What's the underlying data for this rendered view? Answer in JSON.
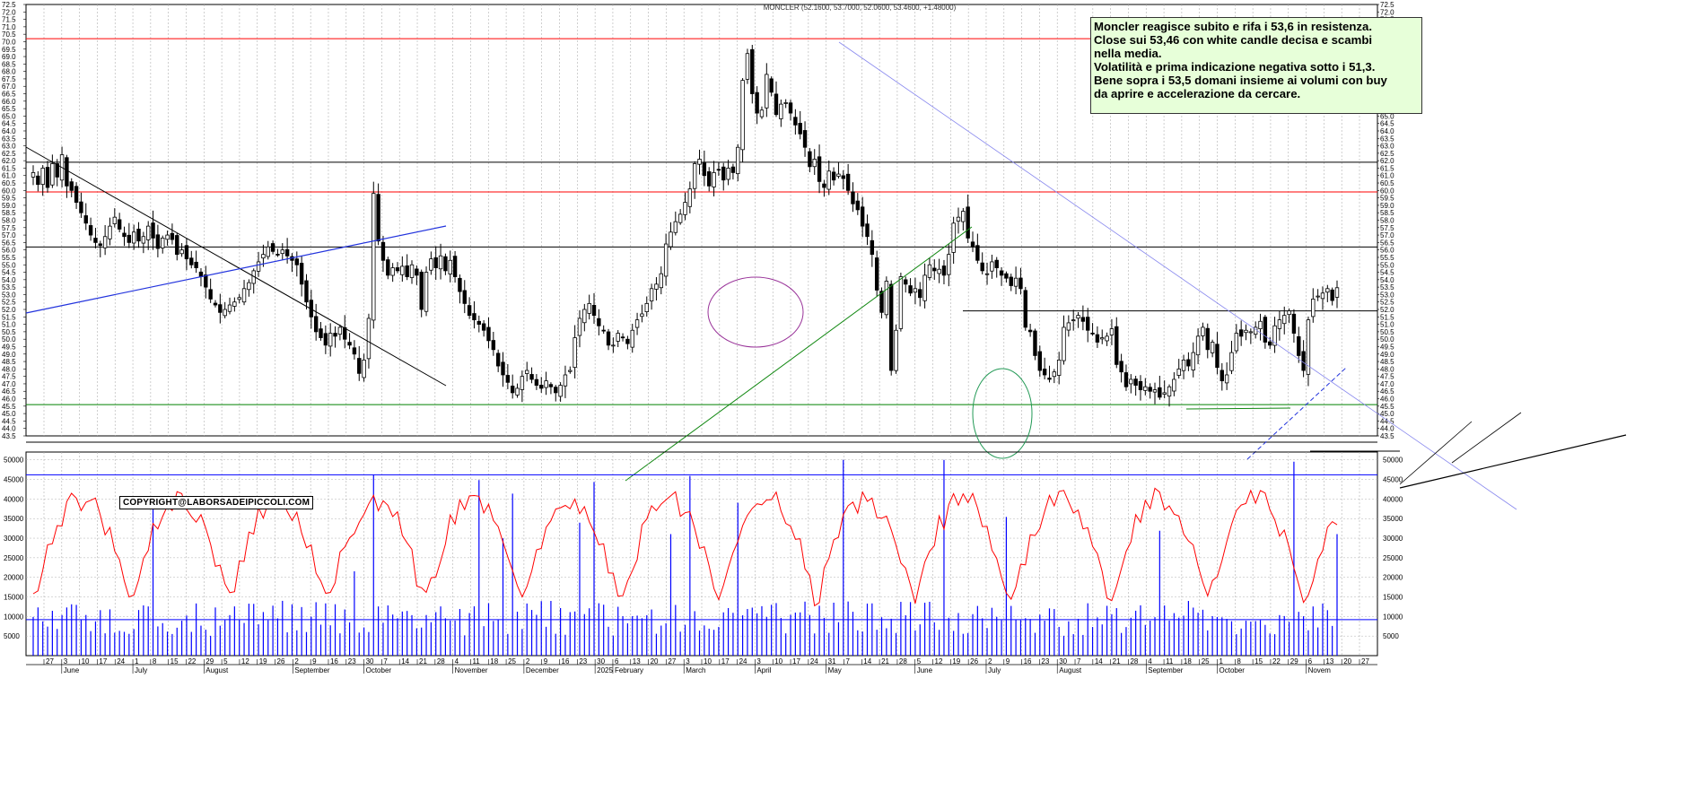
{
  "chart_data": [
    {
      "type": "candlestick",
      "title": "MONCLER (52.1600, 53.7000, 52.0600, 53.4600, +1.48000)",
      "ylim": [
        43.5,
        72.5
      ],
      "ytick_step": 0.5,
      "grid": true,
      "date_range": [
        "2024-05-27",
        "2025-10-24"
      ],
      "x_ticks": [
        "27",
        "3",
        "10",
        "17",
        "24",
        "1",
        "8",
        "15",
        "22",
        "29",
        "5",
        "12",
        "19",
        "26",
        "2",
        "9",
        "16",
        "23",
        "30",
        "7",
        "14",
        "21",
        "28",
        "4",
        "11",
        "18",
        "25",
        "2",
        "9",
        "16",
        "23",
        "30",
        "6",
        "13",
        "20",
        "27",
        "3",
        "10",
        "17",
        "24",
        "3",
        "10",
        "17",
        "24",
        "31",
        "7",
        "14",
        "21",
        "28",
        "5",
        "12",
        "19",
        "26",
        "2",
        "9",
        "16",
        "23",
        "30",
        "7",
        "14",
        "21",
        "28",
        "4",
        "11",
        "18",
        "25",
        "1",
        "8",
        "15",
        "22",
        "29",
        "6",
        "13",
        "20",
        "27"
      ],
      "months": [
        "June",
        "July",
        "August",
        "September",
        "October",
        "November",
        "December",
        "2025",
        "February",
        "March",
        "April",
        "May",
        "June",
        "July",
        "August",
        "September",
        "October",
        "Novem"
      ],
      "close": [
        61.2,
        60.4,
        61.5,
        60.2,
        61.8,
        60.9,
        62.4,
        60.3,
        60.0,
        59.2,
        58.5,
        57.8,
        57.0,
        56.5,
        56.3,
        56.9,
        57.6,
        58.2,
        57.4,
        56.9,
        56.5,
        57.2,
        56.6,
        56.9,
        57.6,
        56.8,
        56.1,
        56.8,
        57.0,
        56.7,
        55.7,
        56.0,
        55.4,
        55.0,
        54.8,
        54.2,
        53.5,
        52.7,
        52.3,
        51.8,
        52.0,
        52.3,
        52.5,
        52.8,
        53.4,
        53.8,
        54.6,
        55.2,
        55.7,
        56.2,
        55.9,
        55.7,
        56.0,
        55.6,
        55.3,
        55.0,
        53.7,
        52.5,
        51.5,
        50.5,
        50.1,
        49.6,
        50.4,
        50.2,
        50.8,
        50.0,
        49.6,
        49.0,
        47.7,
        48.6,
        51.4,
        59.8,
        56.6,
        55.3,
        54.3,
        54.8,
        54.6,
        54.9,
        54.2,
        55.0,
        54.3,
        52.0,
        54.5,
        55.4,
        54.8,
        55.6,
        54.6,
        55.3,
        54.2,
        53.2,
        52.4,
        51.6,
        51.3,
        51.0,
        50.6,
        49.9,
        49.3,
        48.2,
        47.6,
        47.1,
        46.4,
        46.7,
        47.5,
        47.9,
        47.3,
        46.9,
        46.7,
        47.2,
        46.8,
        46.4,
        46.9,
        47.6,
        47.9,
        50.1,
        51.4,
        52.0,
        52.4,
        51.6,
        50.9,
        50.6,
        49.6,
        49.6,
        50.4,
        50.1,
        49.7,
        50.6,
        51.3,
        51.7,
        52.4,
        53.4,
        53.7,
        54.4,
        56.4,
        57.2,
        57.9,
        58.4,
        59.2,
        60.1,
        61.8,
        62.1,
        61.0,
        60.3,
        61.2,
        61.4,
        60.7,
        61.5,
        61.2,
        62.9,
        67.4,
        69.2,
        66.5,
        65.2,
        65.4,
        67.8,
        66.6,
        65.1,
        65.8,
        65.9,
        65.2,
        64.4,
        63.8,
        62.9,
        61.6,
        62.1,
        60.6,
        60.2,
        61.3,
        60.7,
        61.1,
        60.8,
        60.0,
        59.1,
        58.7,
        57.6,
        56.9,
        55.7,
        53.3,
        51.8,
        53.9,
        47.9,
        50.6,
        54.2,
        53.7,
        53.1,
        53.4,
        52.8,
        54.3,
        55.0,
        54.6,
        54.7,
        54.3,
        55.7,
        57.8,
        58.2,
        58.6,
        56.8,
        56.2,
        55.3,
        54.6,
        54.4,
        55.2,
        54.8,
        54.3,
        54.1,
        53.6,
        54.1,
        53.4,
        50.8,
        50.5,
        48.9,
        47.9,
        47.6,
        47.3,
        47.8,
        48.6,
        50.8,
        51.1,
        51.3,
        51.6,
        51.2,
        50.6,
        50.4,
        49.8,
        50.1,
        50.2,
        50.7,
        48.3,
        47.8,
        46.8,
        47.3,
        46.9,
        46.6,
        46.8,
        46.5,
        46.6,
        46.1,
        46.4,
        46.8,
        47.3,
        48.0,
        48.6,
        48.2,
        49.1,
        50.2,
        50.8,
        49.3,
        49.8,
        48.1,
        47.2,
        47.6,
        49.1,
        50.4,
        50.2,
        50.6,
        50.5,
        50.8,
        51.2,
        49.8,
        49.6,
        50.9,
        51.3,
        51.6,
        51.9,
        50.4,
        48.9,
        47.9,
        51.3,
        52.7,
        52.9,
        53.1,
        53.4,
        52.6,
        53.46
      ],
      "volume_panel": {
        "ylim": [
          0,
          52000
        ],
        "yticks": [
          5000,
          10000,
          15000,
          20000,
          25000,
          30000,
          35000,
          40000,
          45000,
          50000
        ],
        "hlines": [
          9200,
          46200
        ],
        "volume_line_color": "#ff0000",
        "volume_bar_color": "#0000ff"
      },
      "horizontal_levels": [
        {
          "value": 70.2,
          "color": "#ff0000"
        },
        {
          "value": 61.9,
          "color": "#000000"
        },
        {
          "value": 59.9,
          "color": "#ff0000"
        },
        {
          "value": 56.2,
          "color": "#000000"
        },
        {
          "value": 51.9,
          "color": "#000000"
        },
        {
          "value": 45.6,
          "color": "#008000"
        }
      ]
    }
  ],
  "commentary": {
    "line1": "Moncler reagisce subito e rifa i 53,6 in resistenza.",
    "line2": "Close sui 53,46 con white candle decisa e scambi",
    "line3": "nella media.",
    "line4": "Volatilità  e prima indicazione negativa sotto i 51,3.",
    "line5": "Bene sopra i 53,5 domani insieme ai volumi con buy",
    "line6": "da aprire e accelerazione da cercare."
  },
  "copyright": "COPYRIGHT@LABORSADEIPICCOLI.COM",
  "colors": {
    "background": "#ffffff",
    "grid": "#b0b0b0",
    "commentary_bg": "#e7ffd9",
    "trend_blue": "#2233dd",
    "trend_green": "#118811",
    "trend_light": "#8888ee",
    "ellipse_purple": "#993399",
    "ellipse_green": "#229955"
  }
}
